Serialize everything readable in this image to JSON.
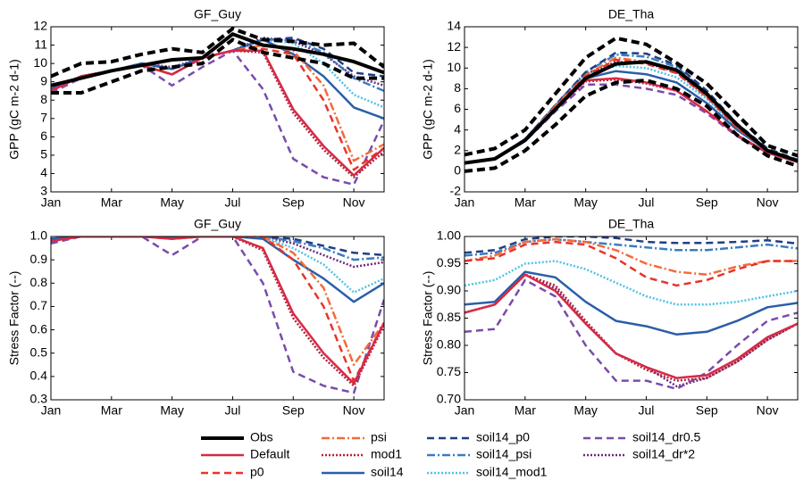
{
  "chart_data": [
    {
      "type": "line",
      "title": "GF_Guy",
      "y_label": "GPP (gC m-2 d-1)",
      "categories": [
        "Jan",
        null,
        "Mar",
        null,
        "May",
        null,
        "Jul",
        null,
        "Sep",
        null,
        "Nov",
        null
      ],
      "ylim": [
        3,
        12
      ],
      "yticks": [
        3,
        4,
        5,
        6,
        7,
        8,
        9,
        10,
        11,
        12
      ],
      "series": [
        {
          "name": "Obs",
          "color": "#000000",
          "dash": "solid",
          "values": [
            8.8,
            9.2,
            9.6,
            9.9,
            10.2,
            10.3,
            11.6,
            11.0,
            10.8,
            10.5,
            10.1,
            9.5
          ],
          "upper": [
            9.3,
            10.0,
            10.1,
            10.5,
            10.8,
            10.6,
            11.9,
            11.3,
            11.2,
            11.0,
            11.1,
            9.8
          ],
          "lower": [
            8.4,
            8.4,
            9.0,
            9.6,
            9.8,
            10.0,
            11.3,
            10.6,
            10.3,
            10.0,
            9.2,
            9.2
          ]
        },
        {
          "name": "Default",
          "color": "#d62a46",
          "dash": "solid",
          "values": [
            8.5,
            9.3,
            9.6,
            9.9,
            9.4,
            10.3,
            10.7,
            10.7,
            7.5,
            5.5,
            3.9,
            5.4
          ]
        },
        {
          "name": "p0",
          "color": "#e8342a",
          "dash": "dashed",
          "values": [
            8.5,
            9.3,
            9.6,
            9.9,
            9.4,
            10.3,
            10.7,
            10.8,
            10.5,
            8.0,
            4.2,
            5.4
          ]
        },
        {
          "name": "psi",
          "color": "#f26b3a",
          "dash": "dashdot",
          "values": [
            8.5,
            9.3,
            9.6,
            9.9,
            9.4,
            10.3,
            10.7,
            11.0,
            10.7,
            8.8,
            4.7,
            5.6
          ]
        },
        {
          "name": "mod1",
          "color": "#b8203a",
          "dash": "dotted",
          "values": [
            8.5,
            9.3,
            9.6,
            9.9,
            9.4,
            10.3,
            10.7,
            10.6,
            7.3,
            5.3,
            3.8,
            5.2
          ]
        },
        {
          "name": "soil14",
          "color": "#2a5ea8",
          "dash": "solid",
          "values": [
            8.6,
            9.3,
            9.6,
            10.0,
            9.7,
            10.3,
            10.7,
            11.3,
            10.5,
            9.3,
            7.6,
            7.0
          ]
        },
        {
          "name": "soil14_p0",
          "color": "#1f3f85",
          "dash": "dashed",
          "values": [
            8.6,
            9.3,
            9.6,
            10.0,
            9.7,
            10.3,
            10.7,
            11.3,
            11.4,
            10.8,
            9.5,
            9.3
          ]
        },
        {
          "name": "soil14_psi",
          "color": "#3a7cc0",
          "dash": "dashdot",
          "values": [
            8.6,
            9.3,
            9.6,
            10.0,
            9.7,
            10.3,
            10.7,
            11.3,
            11.3,
            10.6,
            9.2,
            8.5
          ]
        },
        {
          "name": "soil14_mod1",
          "color": "#4fc3e8",
          "dash": "dotted",
          "values": [
            8.6,
            9.3,
            9.6,
            10.0,
            9.7,
            10.3,
            10.7,
            11.3,
            11.1,
            10.0,
            8.3,
            7.6
          ]
        },
        {
          "name": "soil14_dr0.5",
          "color": "#7a4bab",
          "dash": "dashed",
          "values": [
            8.4,
            9.2,
            9.6,
            9.9,
            8.8,
            9.8,
            10.7,
            8.6,
            4.8,
            3.8,
            3.4,
            6.9
          ]
        },
        {
          "name": "soil14_dr*2",
          "color": "#6a2a7a",
          "dash": "dotted",
          "values": [
            8.6,
            9.3,
            9.6,
            10.0,
            9.8,
            10.3,
            10.7,
            11.4,
            11.2,
            10.5,
            9.3,
            8.8
          ]
        }
      ]
    },
    {
      "type": "line",
      "title": "DE_Tha",
      "y_label": "GPP (gC m-2 d-1)",
      "categories": [
        "Jan",
        null,
        "Mar",
        null,
        "May",
        null,
        "Jul",
        null,
        "Sep",
        null,
        "Nov",
        null
      ],
      "ylim": [
        -2,
        14
      ],
      "yticks": [
        -2,
        0,
        2,
        4,
        6,
        8,
        10,
        12,
        14
      ],
      "series": [
        {
          "name": "Obs",
          "color": "#000000",
          "dash": "solid",
          "values": [
            0.8,
            1.2,
            3.0,
            6.0,
            9.0,
            10.4,
            10.6,
            9.8,
            7.5,
            4.5,
            2.0,
            1.0
          ],
          "upper": [
            1.6,
            2.2,
            4.0,
            7.5,
            11.0,
            12.9,
            12.3,
            10.5,
            8.5,
            5.5,
            2.5,
            1.5
          ],
          "lower": [
            0.0,
            0.3,
            2.0,
            4.5,
            7.3,
            8.6,
            8.8,
            8.0,
            6.3,
            3.5,
            1.5,
            0.5
          ]
        },
        {
          "name": "Default",
          "color": "#d62a46",
          "dash": "solid",
          "values": [
            0.8,
            1.2,
            3.0,
            6.0,
            8.8,
            9.0,
            8.6,
            7.8,
            5.8,
            3.5,
            1.8,
            0.9
          ]
        },
        {
          "name": "p0",
          "color": "#e8342a",
          "dash": "dashed",
          "values": [
            0.8,
            1.2,
            3.0,
            6.2,
            9.2,
            10.8,
            10.4,
            9.5,
            7.2,
            4.2,
            2.0,
            1.0
          ]
        },
        {
          "name": "psi",
          "color": "#f26b3a",
          "dash": "dashdot",
          "values": [
            0.8,
            1.2,
            3.0,
            6.3,
            9.3,
            11.0,
            10.6,
            9.7,
            7.3,
            4.3,
            2.0,
            1.0
          ]
        },
        {
          "name": "mod1",
          "color": "#b8203a",
          "dash": "dotted",
          "values": [
            0.8,
            1.2,
            3.0,
            6.0,
            8.7,
            8.9,
            8.5,
            7.8,
            5.8,
            3.5,
            1.8,
            0.9
          ]
        },
        {
          "name": "soil14",
          "color": "#2a5ea8",
          "dash": "solid",
          "values": [
            0.8,
            1.2,
            3.1,
            6.1,
            9.0,
            9.7,
            9.4,
            8.6,
            6.6,
            4.0,
            2.0,
            1.0
          ]
        },
        {
          "name": "soil14_p0",
          "color": "#1f3f85",
          "dash": "dashed",
          "values": [
            0.8,
            1.2,
            3.1,
            6.4,
            9.6,
            11.5,
            11.4,
            10.3,
            7.8,
            4.6,
            2.2,
            1.1
          ]
        },
        {
          "name": "soil14_psi",
          "color": "#3a7cc0",
          "dash": "dashdot",
          "values": [
            0.8,
            1.2,
            3.1,
            6.4,
            9.6,
            11.3,
            11.1,
            10.1,
            7.6,
            4.5,
            2.1,
            1.0
          ]
        },
        {
          "name": "soil14_mod1",
          "color": "#4fc3e8",
          "dash": "dotted",
          "values": [
            0.8,
            1.2,
            3.1,
            6.2,
            9.3,
            10.2,
            10.0,
            9.1,
            7.0,
            4.2,
            2.0,
            1.0
          ]
        },
        {
          "name": "soil14_dr0.5",
          "color": "#7a4bab",
          "dash": "dashed",
          "values": [
            0.8,
            1.2,
            2.9,
            5.8,
            8.4,
            8.4,
            8.0,
            7.4,
            5.6,
            3.4,
            1.8,
            0.9
          ]
        },
        {
          "name": "soil14_dr*2",
          "color": "#6a2a7a",
          "dash": "dotted",
          "values": [
            0.8,
            1.2,
            3.1,
            6.3,
            9.4,
            10.6,
            10.5,
            9.6,
            7.2,
            4.3,
            2.0,
            1.0
          ]
        }
      ]
    },
    {
      "type": "line",
      "title": "GF_Guy",
      "y_label": "Stress Factor (--)",
      "categories": [
        "Jan",
        null,
        "Mar",
        null,
        "May",
        null,
        "Jul",
        null,
        "Sep",
        null,
        "Nov",
        null
      ],
      "ylim": [
        0.3,
        1.0
      ],
      "yticks": [
        0.3,
        0.4,
        0.5,
        0.6,
        0.7,
        0.8,
        0.9,
        {
          "value": 1.0,
          "label": "1.0"
        }
      ],
      "series": [
        {
          "name": "Default",
          "color": "#d62a46",
          "dash": "solid",
          "values": [
            0.98,
            1,
            1,
            1,
            0.99,
            1,
            1,
            0.95,
            0.67,
            0.5,
            0.37,
            0.63
          ]
        },
        {
          "name": "p0",
          "color": "#e8342a",
          "dash": "dashed",
          "values": [
            0.98,
            1,
            1,
            1,
            0.99,
            1,
            1,
            1,
            0.9,
            0.7,
            0.38,
            0.63
          ]
        },
        {
          "name": "psi",
          "color": "#f26b3a",
          "dash": "dashdot",
          "values": [
            0.98,
            1,
            1,
            1,
            0.99,
            1,
            1,
            1,
            0.93,
            0.78,
            0.45,
            0.63
          ]
        },
        {
          "name": "mod1",
          "color": "#b8203a",
          "dash": "dotted",
          "values": [
            0.98,
            1,
            1,
            1,
            0.99,
            1,
            1,
            0.94,
            0.65,
            0.48,
            0.36,
            0.62
          ]
        },
        {
          "name": "soil14",
          "color": "#2a5ea8",
          "dash": "solid",
          "values": [
            0.99,
            1,
            1,
            1,
            1,
            1,
            1,
            0.99,
            0.9,
            0.82,
            0.72,
            0.8
          ]
        },
        {
          "name": "soil14_p0",
          "color": "#1f3f85",
          "dash": "dashed",
          "values": [
            0.99,
            1,
            1,
            1,
            1,
            1,
            1,
            1,
            0.99,
            0.96,
            0.93,
            0.92
          ]
        },
        {
          "name": "soil14_psi",
          "color": "#3a7cc0",
          "dash": "dashdot",
          "values": [
            0.99,
            1,
            1,
            1,
            1,
            1,
            1,
            1,
            0.98,
            0.95,
            0.9,
            0.91
          ]
        },
        {
          "name": "soil14_mod1",
          "color": "#4fc3e8",
          "dash": "dotted",
          "values": [
            0.99,
            1,
            1,
            1,
            1,
            1,
            1,
            1,
            0.95,
            0.88,
            0.76,
            0.82
          ]
        },
        {
          "name": "soil14_dr0.5",
          "color": "#7a4bab",
          "dash": "dashed",
          "values": [
            0.97,
            1,
            1,
            1,
            0.92,
            1,
            1,
            0.8,
            0.42,
            0.36,
            0.33,
            0.73
          ]
        },
        {
          "name": "soil14_dr*2",
          "color": "#6a2a7a",
          "dash": "dotted",
          "values": [
            0.99,
            1,
            1,
            1,
            1,
            1,
            1,
            1,
            0.97,
            0.92,
            0.87,
            0.89
          ]
        }
      ]
    },
    {
      "type": "line",
      "title": "DE_Tha",
      "y_label": "Stress Factor (--)",
      "categories": [
        "Jan",
        null,
        "Mar",
        null,
        "May",
        null,
        "Jul",
        null,
        "Sep",
        null,
        "Nov",
        null
      ],
      "ylim": [
        0.7,
        1.0
      ],
      "yticks": [
        {
          "value": 0.7,
          "label": "0.70"
        },
        {
          "value": 0.75,
          "label": "0.75"
        },
        {
          "value": 0.8,
          "label": "0.80"
        },
        {
          "value": 0.85,
          "label": "0.85"
        },
        {
          "value": 0.9,
          "label": "0.90"
        },
        {
          "value": 0.95,
          "label": "0.95"
        },
        {
          "value": 1.0,
          "label": "1.00"
        }
      ],
      "series": [
        {
          "name": "Default",
          "color": "#d62a46",
          "dash": "solid",
          "values": [
            0.86,
            0.875,
            0.93,
            0.9,
            0.84,
            0.785,
            0.76,
            0.74,
            0.745,
            0.775,
            0.815,
            0.84
          ]
        },
        {
          "name": "p0",
          "color": "#e8342a",
          "dash": "dashed",
          "values": [
            0.955,
            0.96,
            0.985,
            0.99,
            0.985,
            0.96,
            0.925,
            0.91,
            0.92,
            0.94,
            0.955,
            0.955
          ]
        },
        {
          "name": "psi",
          "color": "#f26b3a",
          "dash": "dashdot",
          "values": [
            0.955,
            0.965,
            0.99,
            0.995,
            0.99,
            0.975,
            0.95,
            0.935,
            0.93,
            0.945,
            0.955,
            0.955
          ]
        },
        {
          "name": "mod1",
          "color": "#b8203a",
          "dash": "dotted",
          "values": [
            0.86,
            0.875,
            0.93,
            0.91,
            0.845,
            0.785,
            0.755,
            0.735,
            0.74,
            0.77,
            0.81,
            0.84
          ]
        },
        {
          "name": "soil14",
          "color": "#2a5ea8",
          "dash": "solid",
          "values": [
            0.875,
            0.88,
            0.935,
            0.925,
            0.88,
            0.845,
            0.835,
            0.82,
            0.825,
            0.845,
            0.87,
            0.878
          ]
        },
        {
          "name": "soil14_p0",
          "color": "#1f3f85",
          "dash": "dashed",
          "values": [
            0.97,
            0.975,
            0.995,
            1.0,
            1.0,
            0.997,
            0.99,
            0.988,
            0.988,
            0.99,
            0.993,
            0.987
          ]
        },
        {
          "name": "soil14_psi",
          "color": "#3a7cc0",
          "dash": "dashdot",
          "values": [
            0.965,
            0.97,
            0.99,
            0.995,
            0.99,
            0.985,
            0.98,
            0.975,
            0.975,
            0.98,
            0.985,
            0.978
          ]
        },
        {
          "name": "soil14_mod1",
          "color": "#4fc3e8",
          "dash": "dotted",
          "values": [
            0.91,
            0.92,
            0.95,
            0.955,
            0.94,
            0.915,
            0.89,
            0.875,
            0.875,
            0.88,
            0.89,
            0.9
          ]
        },
        {
          "name": "soil14_dr0.5",
          "color": "#7a4bab",
          "dash": "dashed",
          "values": [
            0.825,
            0.83,
            0.92,
            0.89,
            0.8,
            0.735,
            0.735,
            0.72,
            0.75,
            0.8,
            0.845,
            0.86
          ]
        },
        {
          "name": "soil14_dr*2",
          "color": "#6a2a7a",
          "dash": "dotted",
          "values": [
            0.86,
            0.875,
            0.93,
            0.905,
            0.84,
            0.785,
            0.76,
            0.725,
            0.74,
            0.77,
            0.81,
            0.84
          ]
        }
      ]
    }
  ]
}
